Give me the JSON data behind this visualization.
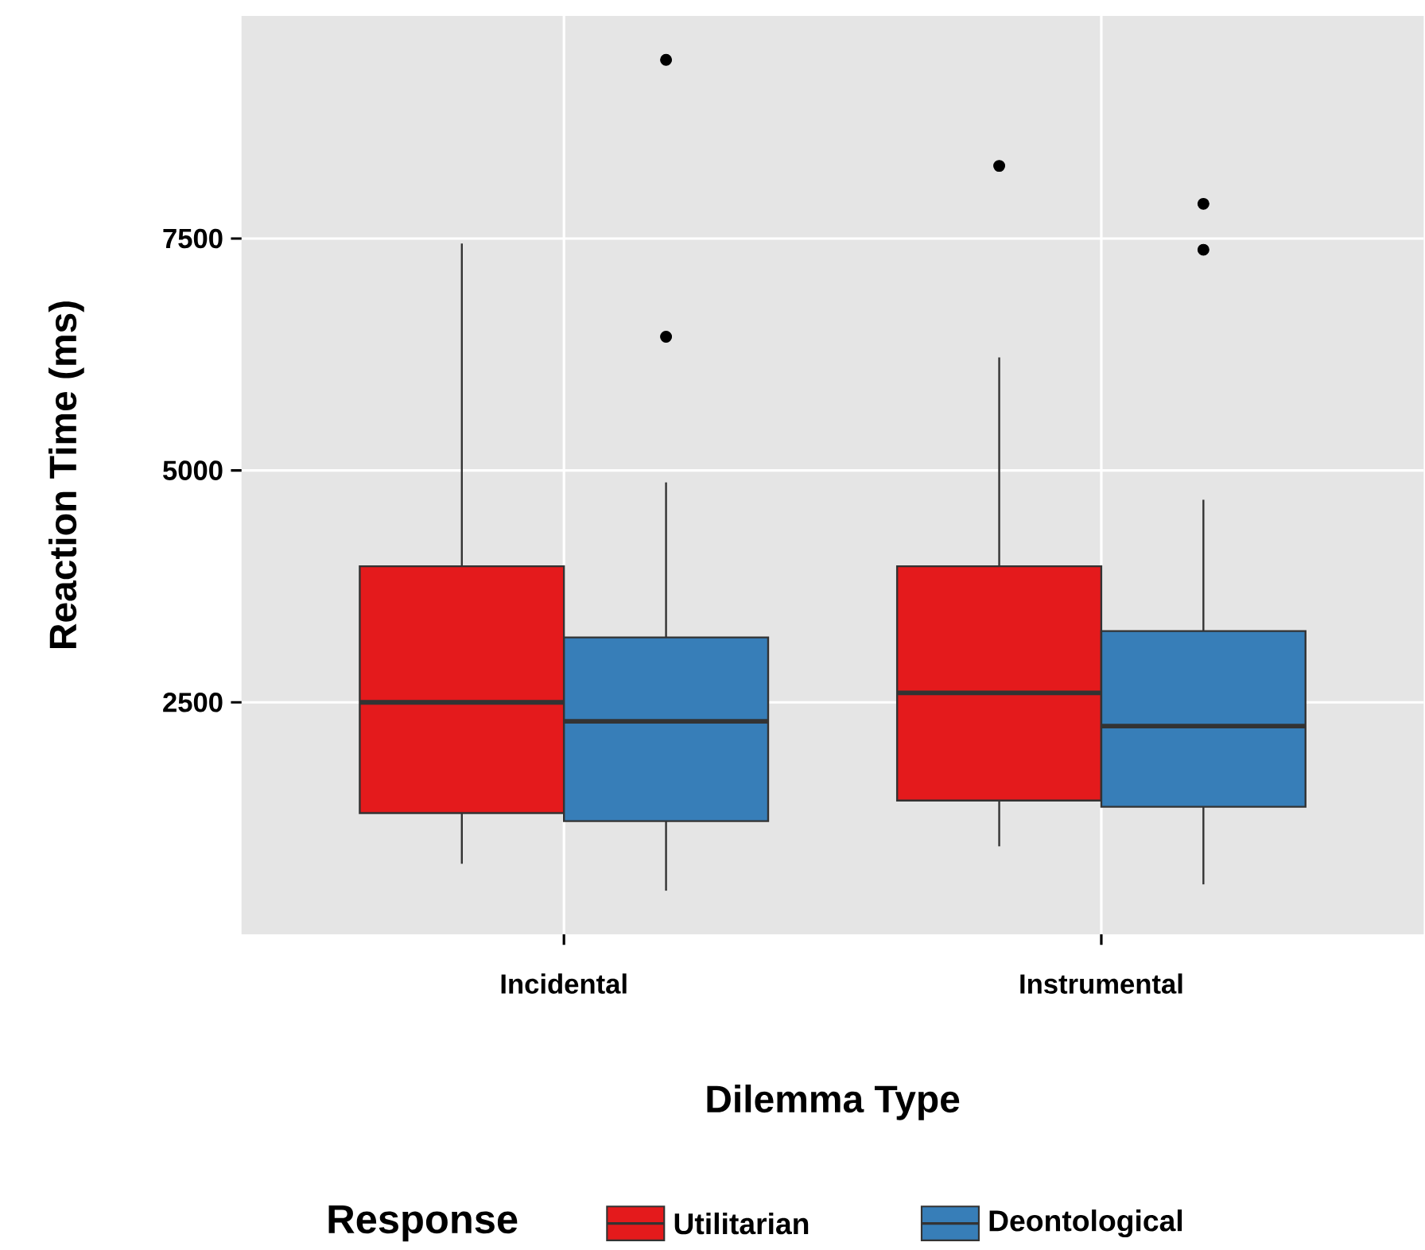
{
  "chart_data": {
    "type": "box",
    "xlabel": "Dilemma Type",
    "ylabel": "Reaction Time (ms)",
    "legend_title": "Response",
    "categories": [
      "Incidental",
      "Instrumental"
    ],
    "ylim": [
      0,
      9900
    ],
    "yticks": [
      2500,
      5000,
      7500
    ],
    "grid": true,
    "legend": "bottom",
    "series": [
      {
        "name": "Utilitarian",
        "color": "#e41a1c",
        "boxes": [
          {
            "low": 760,
            "q1": 1306,
            "median": 2500,
            "q3": 3967,
            "high": 7447
          },
          {
            "low": 948,
            "q1": 1442,
            "median": 2602,
            "q3": 3967,
            "high": 6219,
            "outliers": [
              8283
            ]
          }
        ]
      },
      {
        "name": "Deontological",
        "color": "#377eb8",
        "boxes": [
          {
            "low": 470,
            "q1": 1220,
            "median": 2295,
            "q3": 3200,
            "high": 4871,
            "outliers": [
              6441,
              9426
            ]
          },
          {
            "low": 538,
            "q1": 1374,
            "median": 2244,
            "q3": 3268,
            "high": 4684,
            "outliers": [
              7379,
              7874
            ]
          }
        ]
      }
    ]
  }
}
